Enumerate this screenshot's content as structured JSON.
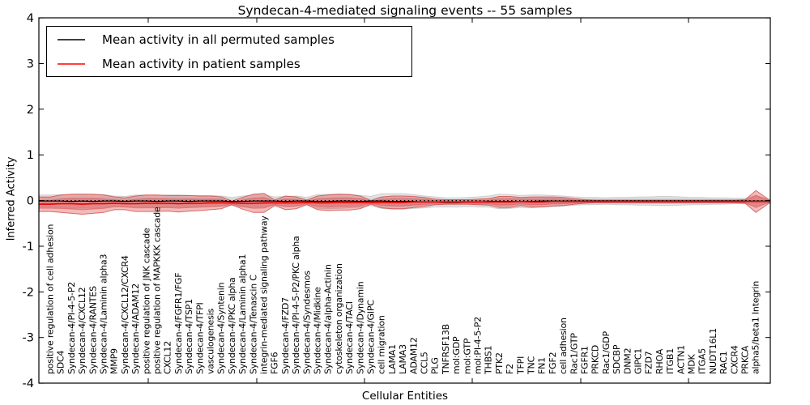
{
  "title": "Syndecan-4-mediated signaling events -- 55 samples",
  "axes": {
    "ylabel": "Inferred Activity",
    "xlabel": "Cellular Entities",
    "yticks": [
      -4,
      -3,
      -2,
      -1,
      0,
      1,
      2,
      3,
      4
    ],
    "ylim": [
      -4,
      4
    ]
  },
  "legend": [
    {
      "label": "Mean activity in all permuted samples",
      "color": "#000000"
    },
    {
      "label": "Mean activity in patient samples",
      "color": "#ff0000"
    }
  ],
  "chart_data": {
    "type": "line",
    "title": "Syndecan-4-mediated signaling events -- 55 samples",
    "xlabel": "Cellular Entities",
    "ylabel": "Inferred Activity",
    "ylim": [
      -4,
      4
    ],
    "yticks": [
      -4,
      -3,
      -2,
      -1,
      0,
      1,
      2,
      3,
      4
    ],
    "grid": false,
    "legend_position": "upper left",
    "zero_line": {
      "y": 0,
      "style": "dotted",
      "color": "#000000"
    },
    "categories": [
      "positive regulation of cell adhesion",
      "SDC4",
      "Syndecan-4/PI-4-5-P2",
      "Syndecan-4/CXCL12",
      "Syndecan-4/RANTES",
      "Syndecan-4/Laminin alpha3",
      "MMP9",
      "Syndecan-4/CXCL12/CXCR4",
      "Syndecan-4/ADAM12",
      "positive regulation of JNK cascade",
      "positive regulation of MAPKKK cascade",
      "CXCL12",
      "Syndecan-4/FGFR1/FGF",
      "Syndecan-4/TSP1",
      "Syndecan-4/TFPI",
      "vasculogenesis",
      "Syndecan-4/Syntenin",
      "Syndecan-4/PKC alpha",
      "Syndecan-4/Laminin alpha1",
      "Syndecan-4/Tenascin C",
      "integrin-mediated signaling pathway",
      "FGF6",
      "Syndecan-4/FZD7",
      "Syndecan-4/PI-4-5-P2/PKC alpha",
      "Syndecan-4/Syndesmos",
      "Syndecan-4/Midkine",
      "Syndecan-4/alpha-Actinin",
      "cytoskeleton organization",
      "Syndecan-4/TACI",
      "Syndecan-4/Dynamin",
      "Syndecan-4/GIPC",
      "cell migration",
      "LAMA1",
      "LAMA3",
      "ADAM12",
      "CCL5",
      "PLG",
      "TNFRSF13B",
      "mol:GDP",
      "mol:GTP",
      "mol:PI-4-5-P2",
      "THBS1",
      "PTK2",
      "F2",
      "TFPI",
      "TNC",
      "FN1",
      "FGF2",
      "cell adhesion",
      "Rac1/GTP",
      "FGFR1",
      "PRKCD",
      "Rac1/GDP",
      "SDCBP",
      "DNM2",
      "GIPC1",
      "FZD7",
      "RHOA",
      "ITGB1",
      "ACTN1",
      "MDK",
      "ITGA5",
      "NUDT16L1",
      "RAC1",
      "CXCR4",
      "PRKCA",
      "alpha5/beta1 Integrin"
    ],
    "series": [
      {
        "name": "Mean activity in all permuted samples",
        "color": "#000000",
        "line_width": 1.2,
        "band_color": "#c9c9c9",
        "band_edge": "#bdbdbd",
        "band_opacity": 0.5,
        "band_inner_ratio": 0.55,
        "right_edge": {
          "mean": -0.01,
          "halfwidth": 0.03
        },
        "values": [
          -0.01,
          -0.01,
          -0.02,
          -0.01,
          -0.02,
          -0.01,
          -0.01,
          -0.02,
          -0.01,
          -0.01,
          -0.02,
          -0.01,
          -0.01,
          -0.02,
          -0.01,
          -0.01,
          -0.01,
          -0.02,
          -0.02,
          -0.01,
          -0.01,
          -0.01,
          -0.02,
          -0.01,
          -0.01,
          -0.02,
          -0.02,
          -0.01,
          -0.01,
          -0.02,
          -0.01,
          -0.01,
          -0.02,
          -0.02,
          -0.02,
          -0.03,
          -0.03,
          -0.04,
          -0.04,
          -0.03,
          -0.03,
          -0.02,
          -0.02,
          -0.02,
          -0.02,
          -0.02,
          -0.01,
          -0.01,
          -0.01,
          -0.01,
          -0.01,
          -0.01,
          -0.01,
          -0.01,
          -0.01,
          -0.01,
          -0.01,
          -0.01,
          -0.01,
          -0.01,
          -0.01,
          -0.01,
          -0.01,
          -0.01,
          -0.01,
          -0.01,
          -0.01
        ],
        "band_halfwidth": [
          0.13,
          0.14,
          0.15,
          0.15,
          0.15,
          0.14,
          0.11,
          0.11,
          0.13,
          0.13,
          0.13,
          0.13,
          0.13,
          0.13,
          0.12,
          0.12,
          0.11,
          0.09,
          0.12,
          0.13,
          0.13,
          0.09,
          0.11,
          0.11,
          0.08,
          0.15,
          0.16,
          0.16,
          0.15,
          0.13,
          0.1,
          0.16,
          0.17,
          0.17,
          0.15,
          0.13,
          0.11,
          0.1,
          0.1,
          0.1,
          0.11,
          0.12,
          0.16,
          0.15,
          0.13,
          0.14,
          0.13,
          0.12,
          0.11,
          0.09,
          0.08,
          0.08,
          0.07,
          0.08,
          0.08,
          0.09,
          0.09,
          0.1,
          0.1,
          0.09,
          0.08,
          0.08,
          0.07,
          0.07,
          0.06,
          0.06,
          0.12
        ]
      },
      {
        "name": "Mean activity in patient samples",
        "color": "#e10000",
        "line_width": 1.6,
        "band_color": "#e25b5b",
        "band_edge": "#cf3a3a",
        "band_opacity": 0.42,
        "band_inner_ratio": 0.55,
        "right_edge": {
          "mean": -0.02,
          "halfwidth": 0.02
        },
        "values": [
          -0.08,
          -0.07,
          -0.07,
          -0.08,
          -0.07,
          -0.07,
          -0.06,
          -0.07,
          -0.07,
          -0.06,
          -0.06,
          -0.06,
          -0.07,
          -0.06,
          -0.06,
          -0.05,
          -0.05,
          -0.05,
          -0.06,
          -0.06,
          -0.05,
          -0.05,
          -0.05,
          -0.05,
          -0.04,
          -0.05,
          -0.05,
          -0.04,
          -0.04,
          -0.04,
          -0.04,
          -0.04,
          -0.04,
          -0.04,
          -0.03,
          -0.03,
          -0.03,
          -0.03,
          -0.03,
          -0.03,
          -0.03,
          -0.03,
          -0.03,
          -0.03,
          -0.02,
          -0.03,
          -0.03,
          -0.02,
          -0.02,
          -0.02,
          -0.02,
          -0.02,
          -0.02,
          -0.02,
          -0.02,
          -0.02,
          -0.02,
          -0.02,
          -0.02,
          -0.02,
          -0.02,
          -0.02,
          -0.02,
          -0.02,
          -0.02,
          -0.02,
          -0.02
        ],
        "band_halfwidth": [
          0.16,
          0.19,
          0.21,
          0.22,
          0.21,
          0.19,
          0.14,
          0.13,
          0.17,
          0.18,
          0.18,
          0.17,
          0.18,
          0.17,
          0.16,
          0.15,
          0.13,
          0.04,
          0.13,
          0.2,
          0.21,
          0.06,
          0.15,
          0.13,
          0.05,
          0.15,
          0.17,
          0.17,
          0.17,
          0.14,
          0.04,
          0.12,
          0.14,
          0.14,
          0.12,
          0.1,
          0.06,
          0.05,
          0.05,
          0.05,
          0.06,
          0.07,
          0.12,
          0.12,
          0.09,
          0.11,
          0.11,
          0.1,
          0.09,
          0.06,
          0.04,
          0.03,
          0.03,
          0.03,
          0.03,
          0.03,
          0.03,
          0.03,
          0.03,
          0.03,
          0.03,
          0.03,
          0.03,
          0.03,
          0.03,
          0.04,
          0.24
        ]
      }
    ]
  }
}
